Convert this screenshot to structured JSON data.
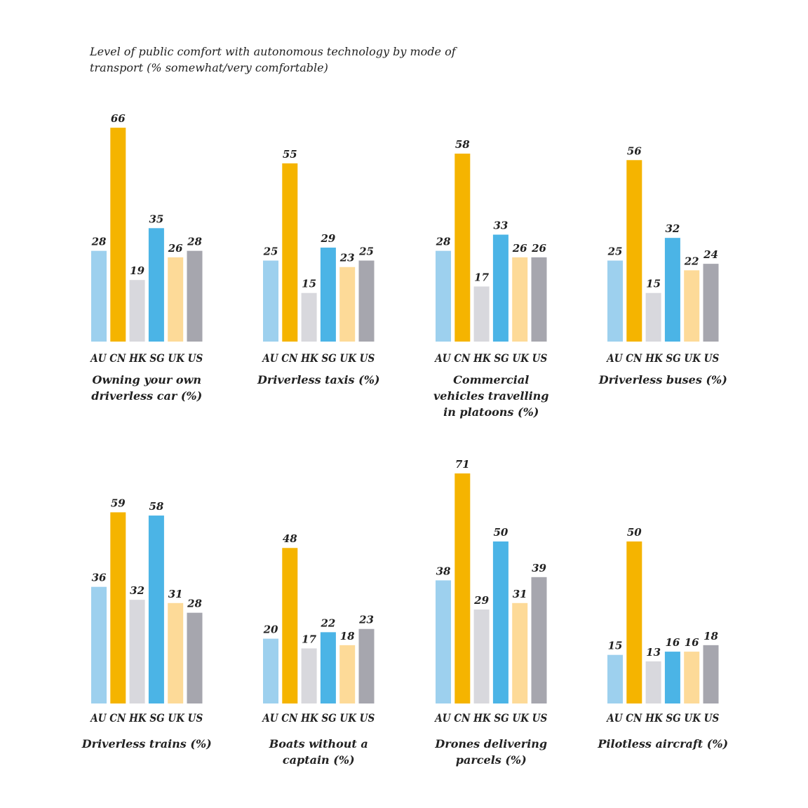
{
  "chart_data": {
    "type": "bar",
    "title": "Level of public comfort with autonomous technology by mode of transport (% somewhat/very comfortable)",
    "categories": [
      "AU",
      "CN",
      "HK",
      "SG",
      "UK",
      "US"
    ],
    "colors": {
      "AU": "#9dd0ee",
      "CN": "#f5b400",
      "HK": "#d8d8dd",
      "SG": "#4bb4e6",
      "UK": "#fdda98",
      "US": "#a6a6ae"
    },
    "ylim": [
      0,
      75
    ],
    "grid": false,
    "legend": "none",
    "panels": [
      {
        "title_lines": [
          "Owning your own",
          "driverless car (%)"
        ],
        "values": [
          28,
          66,
          19,
          35,
          26,
          28
        ]
      },
      {
        "title_lines": [
          "Driverless taxis (%)"
        ],
        "values": [
          25,
          55,
          15,
          29,
          23,
          25
        ]
      },
      {
        "title_lines": [
          "Commercial",
          "vehicles travelling",
          "in platoons (%)"
        ],
        "values": [
          28,
          58,
          17,
          33,
          26,
          26
        ]
      },
      {
        "title_lines": [
          "Driverless buses (%)"
        ],
        "values": [
          25,
          56,
          15,
          32,
          22,
          24
        ]
      },
      {
        "title_lines": [
          "Driverless trains (%)"
        ],
        "values": [
          36,
          59,
          32,
          58,
          31,
          28
        ]
      },
      {
        "title_lines": [
          "Boats without a",
          "captain (%)"
        ],
        "values": [
          20,
          48,
          17,
          22,
          18,
          23
        ]
      },
      {
        "title_lines": [
          "Drones delivering",
          "parcels (%)"
        ],
        "values": [
          38,
          71,
          29,
          50,
          31,
          39
        ]
      },
      {
        "title_lines": [
          "Pilotless aircraft (%)"
        ],
        "values": [
          15,
          50,
          13,
          16,
          16,
          18
        ]
      }
    ]
  }
}
